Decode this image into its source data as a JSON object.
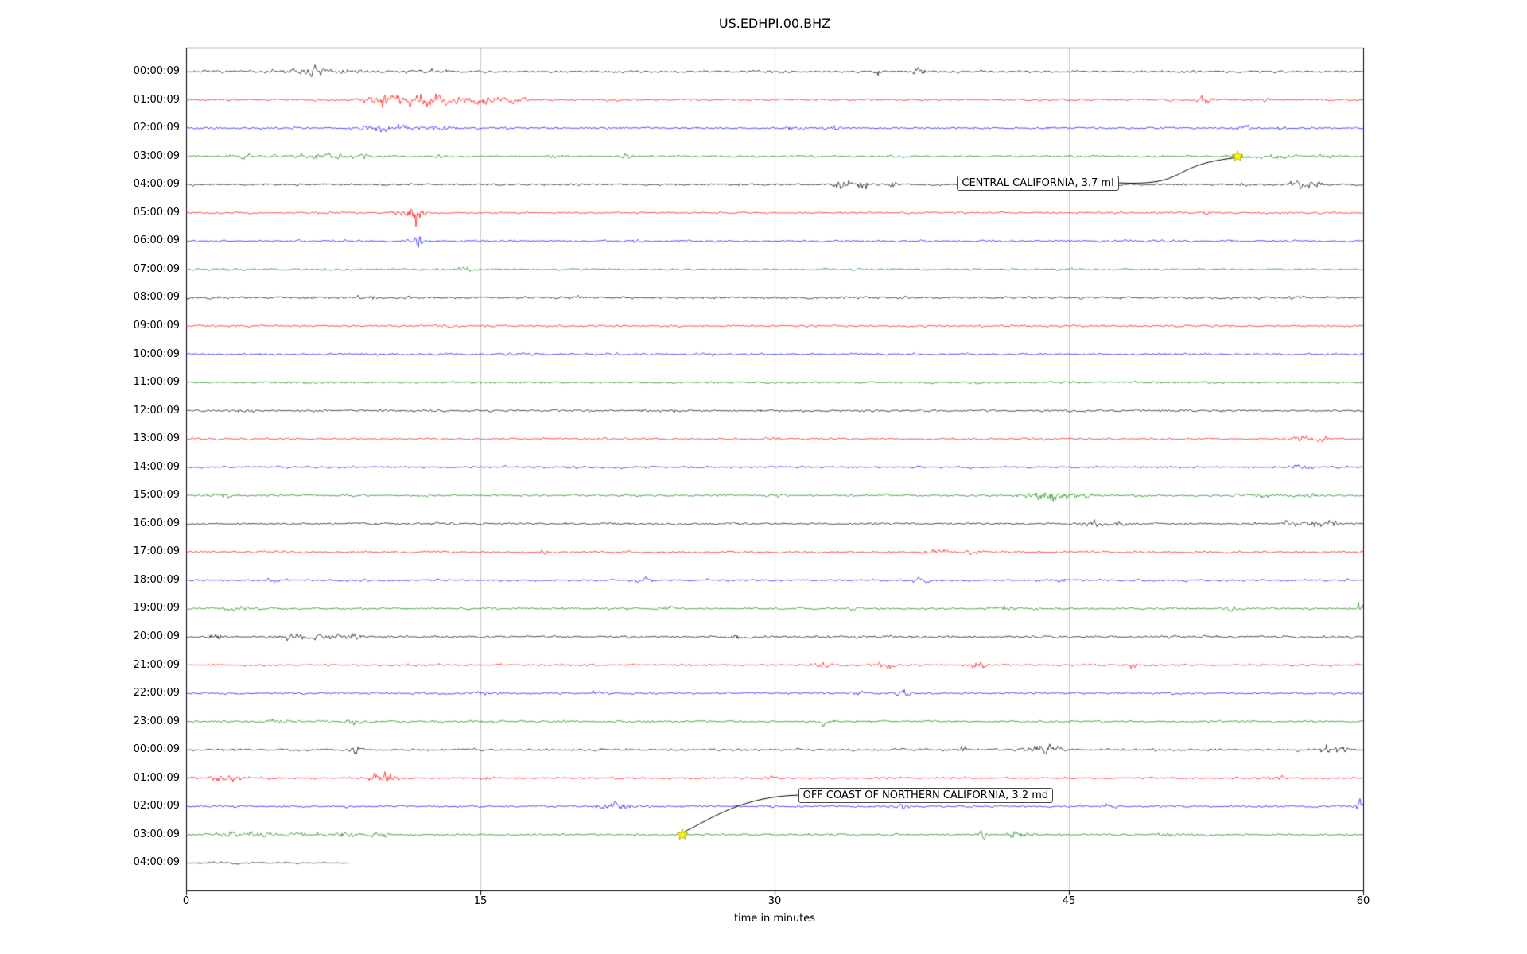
{
  "title": "US.EDHPI.00.BHZ",
  "colors": {
    "trace_cycle": [
      "#000000",
      "#ff0000",
      "#0000ff",
      "#008000"
    ],
    "grid": "#c8c8c8",
    "frame": "#000000",
    "marker": "#ffff00",
    "marker_edge": "#999900",
    "leader": "#000000"
  },
  "chart_data": {
    "type": "line",
    "title": "US.EDHPI.00.BHZ",
    "xlabel": "time in minutes",
    "xlim": [
      0,
      60
    ],
    "x_ticks": [
      0,
      15,
      30,
      45,
      60
    ],
    "grid": "vertical-only",
    "rows": [
      {
        "label": "00:00:09",
        "color": 0,
        "base": 2.4,
        "bursts": [
          [
            5.5,
            1.2,
            4
          ],
          [
            6.5,
            0.3,
            6
          ],
          [
            8,
            0.5,
            4
          ],
          [
            12.5,
            0.8,
            3
          ],
          [
            30.5,
            0.1,
            4
          ],
          [
            35.3,
            0.15,
            8
          ],
          [
            37.3,
            0.2,
            10
          ]
        ]
      },
      {
        "label": "01:00:09",
        "color": 1,
        "base": 2.2,
        "bursts": [
          [
            9.5,
            0.6,
            8
          ],
          [
            11,
            0.8,
            10
          ],
          [
            12.3,
            0.5,
            12
          ],
          [
            13.5,
            0.8,
            8
          ],
          [
            15.5,
            0.6,
            6
          ],
          [
            16.8,
            0.4,
            5
          ],
          [
            52,
            0.3,
            6
          ],
          [
            55,
            0.2,
            3
          ]
        ]
      },
      {
        "label": "02:00:09",
        "color": 2,
        "base": 2.2,
        "bursts": [
          [
            9.8,
            0.8,
            4
          ],
          [
            11.5,
            0.6,
            5
          ],
          [
            13,
            0.4,
            4
          ],
          [
            31,
            0.3,
            3
          ],
          [
            33,
            0.2,
            5
          ],
          [
            54,
            0.4,
            4
          ],
          [
            55.8,
            0.2,
            5
          ]
        ]
      },
      {
        "label": "03:00:09",
        "color": 3,
        "base": 2.3,
        "bursts": [
          [
            3,
            0.5,
            3
          ],
          [
            6.2,
            0.8,
            4
          ],
          [
            7.5,
            0.5,
            5
          ],
          [
            9,
            0.3,
            4
          ],
          [
            12.9,
            0.15,
            7
          ],
          [
            19,
            0.4,
            3
          ],
          [
            22.6,
            0.3,
            5
          ],
          [
            53.8,
            0.4,
            5
          ],
          [
            55.6,
            0.5,
            6
          ],
          [
            58,
            0.3,
            3
          ]
        ]
      },
      {
        "label": "04:00:09",
        "color": 0,
        "base": 2.2,
        "bursts": [
          [
            33.4,
            0.3,
            8
          ],
          [
            34.5,
            0.4,
            9
          ],
          [
            36,
            0.2,
            5
          ],
          [
            45.9,
            0.1,
            10
          ],
          [
            54,
            0.3,
            4
          ],
          [
            56.6,
            0.4,
            6
          ],
          [
            57.5,
            0.3,
            5
          ]
        ]
      },
      {
        "label": "05:00:09",
        "color": 1,
        "base": 2.2,
        "bursts": [
          [
            10.8,
            0.3,
            5
          ],
          [
            11.7,
            0.25,
            22
          ],
          [
            52,
            0.2,
            3
          ]
        ]
      },
      {
        "label": "06:00:09",
        "color": 2,
        "base": 2.2,
        "bursts": [
          [
            11.8,
            0.12,
            26
          ],
          [
            23,
            0.3,
            2.5
          ]
        ]
      },
      {
        "label": "07:00:09",
        "color": 3,
        "base": 2.1,
        "bursts": [
          [
            2,
            0.5,
            2.5
          ],
          [
            14.3,
            0.3,
            3
          ]
        ]
      },
      {
        "label": "08:00:09",
        "color": 0,
        "base": 2.6,
        "bursts": [
          [
            9.5,
            0.8,
            2
          ],
          [
            20,
            0.5,
            1.5
          ]
        ]
      },
      {
        "label": "09:00:09",
        "color": 1,
        "base": 2.2,
        "bursts": [
          [
            13,
            0.5,
            1.5
          ],
          [
            44,
            0.4,
            1.5
          ]
        ]
      },
      {
        "label": "10:00:09",
        "color": 2,
        "base": 2.2,
        "bursts": [
          [
            16.5,
            0.6,
            2
          ],
          [
            27,
            0.4,
            1.5
          ]
        ]
      },
      {
        "label": "11:00:09",
        "color": 3,
        "base": 2.1,
        "bursts": [
          [
            6,
            0.4,
            1.5
          ],
          [
            40,
            0.3,
            1.5
          ]
        ]
      },
      {
        "label": "12:00:09",
        "color": 0,
        "base": 2.4,
        "bursts": [
          [
            3,
            0.4,
            2
          ],
          [
            25,
            0.5,
            1.5
          ]
        ]
      },
      {
        "label": "13:00:09",
        "color": 1,
        "base": 2.2,
        "bursts": [
          [
            30,
            0.3,
            2
          ],
          [
            56.8,
            0.5,
            6
          ],
          [
            57.8,
            0.3,
            5
          ]
        ]
      },
      {
        "label": "14:00:09",
        "color": 2,
        "base": 2.2,
        "bursts": [
          [
            14,
            0.3,
            2
          ],
          [
            56.8,
            0.4,
            4
          ]
        ]
      },
      {
        "label": "15:00:09",
        "color": 3,
        "base": 2.3,
        "bursts": [
          [
            2,
            0.5,
            3
          ],
          [
            30,
            0.3,
            3
          ],
          [
            43.5,
            0.5,
            7
          ],
          [
            44.5,
            0.6,
            8
          ],
          [
            46,
            0.4,
            5
          ],
          [
            54.8,
            0.3,
            5
          ],
          [
            57.2,
            0.4,
            6
          ]
        ]
      },
      {
        "label": "16:00:09",
        "color": 0,
        "base": 2.4,
        "bursts": [
          [
            12.7,
            0.1,
            7
          ],
          [
            46.3,
            0.3,
            6
          ],
          [
            47.5,
            0.3,
            6
          ],
          [
            56.2,
            0.3,
            5
          ],
          [
            57.5,
            0.4,
            6
          ],
          [
            58.5,
            0.3,
            5
          ]
        ]
      },
      {
        "label": "17:00:09",
        "color": 1,
        "base": 2.2,
        "bursts": [
          [
            18.5,
            0.3,
            2.5
          ],
          [
            38.3,
            0.4,
            5
          ],
          [
            40,
            0.3,
            4
          ]
        ]
      },
      {
        "label": "18:00:09",
        "color": 2,
        "base": 2.2,
        "bursts": [
          [
            4.5,
            0.4,
            4
          ],
          [
            23.3,
            0.3,
            5
          ],
          [
            37.5,
            0.3,
            4
          ],
          [
            44.5,
            0.3,
            3
          ]
        ]
      },
      {
        "label": "19:00:09",
        "color": 3,
        "base": 2.3,
        "bursts": [
          [
            2.8,
            0.5,
            4
          ],
          [
            24.4,
            0.3,
            6
          ],
          [
            34,
            0.3,
            3
          ],
          [
            41.5,
            0.4,
            4
          ],
          [
            53.2,
            0.3,
            5
          ],
          [
            59.9,
            0.15,
            12
          ]
        ]
      },
      {
        "label": "20:00:09",
        "color": 0,
        "base": 2.4,
        "bursts": [
          [
            1.5,
            0.3,
            5
          ],
          [
            5.5,
            0.8,
            5
          ],
          [
            7.5,
            0.6,
            5
          ],
          [
            8.5,
            0.3,
            4
          ],
          [
            28.2,
            0.3,
            4
          ],
          [
            59,
            0.3,
            3
          ]
        ]
      },
      {
        "label": "21:00:09",
        "color": 1,
        "base": 2.2,
        "bursts": [
          [
            12,
            0.4,
            3
          ],
          [
            32.4,
            0.3,
            6
          ],
          [
            35.6,
            0.4,
            6
          ],
          [
            40.4,
            0.3,
            5
          ],
          [
            48.2,
            0.3,
            4
          ]
        ]
      },
      {
        "label": "22:00:09",
        "color": 2,
        "base": 2.2,
        "bursts": [
          [
            15.2,
            0.4,
            5
          ],
          [
            21,
            0.3,
            3
          ],
          [
            34.2,
            0.3,
            6
          ],
          [
            36.6,
            0.3,
            7
          ]
        ]
      },
      {
        "label": "23:00:09",
        "color": 3,
        "base": 2.3,
        "bursts": [
          [
            4.5,
            0.5,
            4
          ],
          [
            8.5,
            0.2,
            9
          ],
          [
            16,
            0.4,
            3
          ],
          [
            32.6,
            0.3,
            6
          ]
        ]
      },
      {
        "label": "00:00:09",
        "color": 0,
        "base": 2.4,
        "bursts": [
          [
            8.6,
            0.15,
            12
          ],
          [
            39.6,
            0.15,
            10
          ],
          [
            43.5,
            0.5,
            8
          ],
          [
            44.3,
            0.3,
            6
          ],
          [
            58.3,
            0.3,
            8
          ],
          [
            58.9,
            0.2,
            7
          ]
        ]
      },
      {
        "label": "01:00:09",
        "color": 1,
        "base": 2.2,
        "bursts": [
          [
            1.8,
            0.5,
            6
          ],
          [
            2.5,
            0.3,
            5
          ],
          [
            9.8,
            0.5,
            9
          ],
          [
            10.5,
            0.3,
            7
          ],
          [
            15.5,
            0.2,
            4
          ],
          [
            30,
            0.3,
            2.5
          ],
          [
            55.5,
            0.3,
            5
          ]
        ]
      },
      {
        "label": "02:00:09",
        "color": 2,
        "base": 2.2,
        "bursts": [
          [
            21.5,
            0.5,
            5
          ],
          [
            22.3,
            0.3,
            4
          ],
          [
            36.6,
            0.15,
            9
          ],
          [
            47,
            0.3,
            3
          ],
          [
            59.8,
            0.2,
            10
          ]
        ]
      },
      {
        "label": "03:00:09",
        "color": 3,
        "base": 2.3,
        "bursts": [
          [
            2.5,
            0.6,
            4
          ],
          [
            4,
            0.5,
            4
          ],
          [
            6,
            0.5,
            4
          ],
          [
            8,
            0.5,
            4
          ],
          [
            10,
            0.5,
            4
          ],
          [
            33,
            0.3,
            3
          ],
          [
            40.7,
            0.15,
            11
          ],
          [
            42.4,
            0.4,
            6
          ],
          [
            50,
            0.3,
            3
          ]
        ]
      },
      {
        "label": "04:00:09",
        "color": 0,
        "base": 1.3,
        "extent": [
          0,
          8.3
        ],
        "bursts": [
          [
            2,
            1.5,
            1.5
          ]
        ]
      }
    ],
    "annotations": [
      {
        "text": "CENTRAL CALIFORNIA, 3.7 ml",
        "marker": {
          "row": 3,
          "minute": 53.6
        },
        "label": {
          "row_y": 3.94,
          "minute": 39.3
        },
        "leader_from": "right"
      },
      {
        "text": "OFF COAST OF NORTHERN CALIFORNIA, 3.2 md",
        "marker": {
          "row": 27,
          "minute": 25.3
        },
        "label": {
          "row_y": 25.6,
          "minute": 31.2
        },
        "leader_from": "left"
      }
    ]
  }
}
